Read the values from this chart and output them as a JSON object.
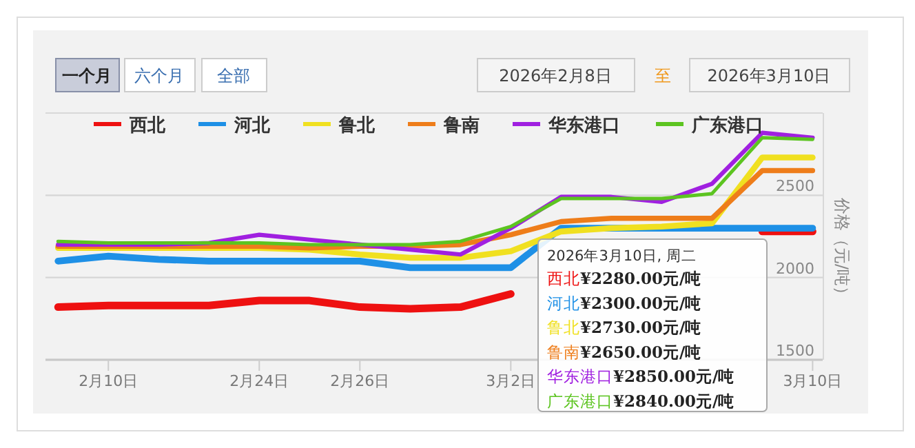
{
  "chart_data": {
    "type": "line",
    "ylabel": "价格（元/吨）",
    "categories": [
      null,
      "2月10日",
      null,
      null,
      "2月24日",
      null,
      "2月26日",
      null,
      null,
      "3月2日",
      null,
      null,
      null,
      null,
      null,
      "3月10日"
    ],
    "series": [
      {
        "name": "西北",
        "color": "#ee1111",
        "values": [
          1820,
          1830,
          1830,
          1830,
          1860,
          1860,
          1820,
          1810,
          1820,
          1900,
          null,
          null,
          null,
          null,
          2280,
          2280
        ]
      },
      {
        "name": "河北",
        "color": "#1e90e6",
        "values": [
          2100,
          2130,
          2110,
          2100,
          2100,
          2100,
          2100,
          2060,
          2060,
          2060,
          2300,
          2300,
          2300,
          2300,
          2300,
          2300
        ]
      },
      {
        "name": "鲁北",
        "color": "#f0e020",
        "values": [
          2180,
          2180,
          2180,
          2180,
          2180,
          2170,
          2140,
          2120,
          2120,
          2160,
          2280,
          2300,
          2310,
          2330,
          2730,
          2730
        ]
      },
      {
        "name": "鲁南",
        "color": "#ee7d1a",
        "values": [
          2190,
          2190,
          2190,
          2190,
          2190,
          2180,
          2190,
          2190,
          2200,
          2260,
          2340,
          2360,
          2360,
          2360,
          2650,
          2650
        ]
      },
      {
        "name": "华东港口",
        "color": "#a020e0",
        "values": [
          2200,
          2200,
          2200,
          2210,
          2260,
          2230,
          2200,
          2170,
          2140,
          2300,
          2490,
          2490,
          2460,
          2570,
          2880,
          2850
        ]
      },
      {
        "name": "广东港口",
        "color": "#5cc420",
        "values": [
          2220,
          2210,
          2210,
          2210,
          2210,
          2200,
          2200,
          2200,
          2220,
          2310,
          2480,
          2480,
          2480,
          2510,
          2850,
          2840
        ]
      }
    ],
    "ylim": [
      1500,
      3000
    ],
    "yticks": [
      1500,
      2000,
      2500
    ],
    "grid": "y",
    "legend": "top",
    "annotations": [
      "一个月",
      "六个月",
      "全部",
      "2026年2月8日",
      "至",
      "2026年3月10日",
      "2026年3月10日, 周二",
      "¥2280.00元/吨",
      "¥2300.00元/吨",
      "¥2730.00元/吨",
      "¥2650.00元/吨",
      "¥2850.00元/吨",
      "¥2840.00元/吨"
    ]
  }
}
